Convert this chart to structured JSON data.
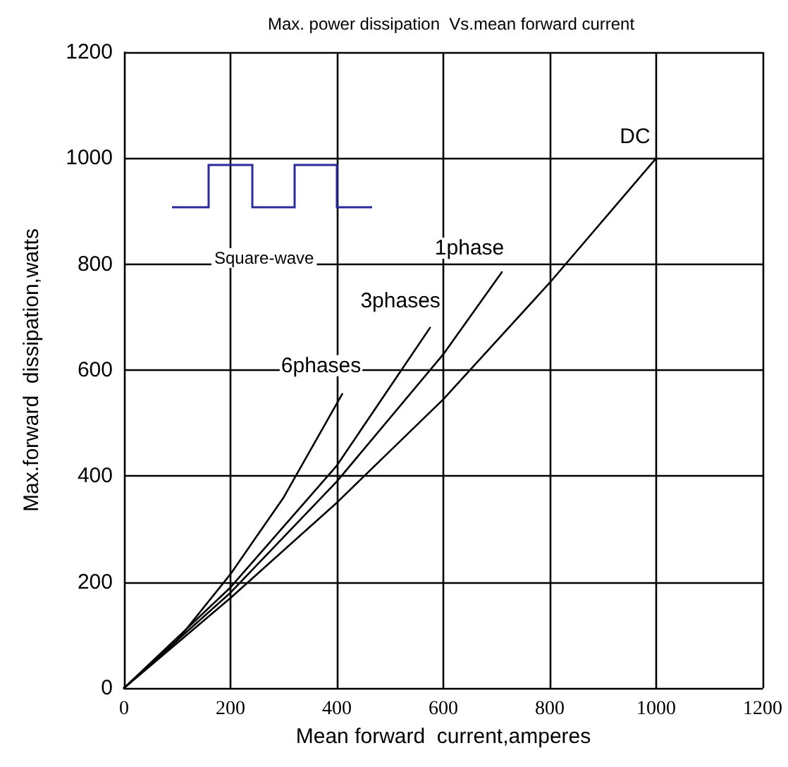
{
  "chart_data": {
    "type": "line",
    "title": "Max. power dissipation  Vs.mean forward current",
    "xlabel": "Mean forward  current,amperes",
    "ylabel": "Max.forward  dissipation,watts",
    "xlim": [
      0,
      1200
    ],
    "xticks": [
      0,
      200,
      400,
      600,
      800,
      1000,
      1200
    ],
    "ylim": [
      0,
      1200
    ],
    "yticks": [
      0,
      200,
      400,
      600,
      800,
      1000,
      1200
    ],
    "grid": true,
    "marker": "none",
    "line_style": "solid",
    "series": [
      {
        "name": "DC",
        "color": "#000000",
        "x": [
          0,
          200,
          400,
          600,
          800,
          1000
        ],
        "values": [
          0,
          170,
          350,
          545,
          765,
          1000
        ]
      },
      {
        "name": "1phase",
        "color": "#000000",
        "x": [
          0,
          200,
          400,
          600,
          710
        ],
        "values": [
          0,
          180,
          390,
          630,
          785
        ]
      },
      {
        "name": "3phases",
        "color": "#000000",
        "x": [
          0,
          200,
          400,
          575
        ],
        "values": [
          0,
          190,
          420,
          680
        ]
      },
      {
        "name": "6phases",
        "color": "#000000",
        "x": [
          0,
          100,
          200,
          300,
          410
        ],
        "values": [
          0,
          90,
          215,
          360,
          555
        ]
      }
    ],
    "annotations": [
      "Square-wave"
    ]
  }
}
